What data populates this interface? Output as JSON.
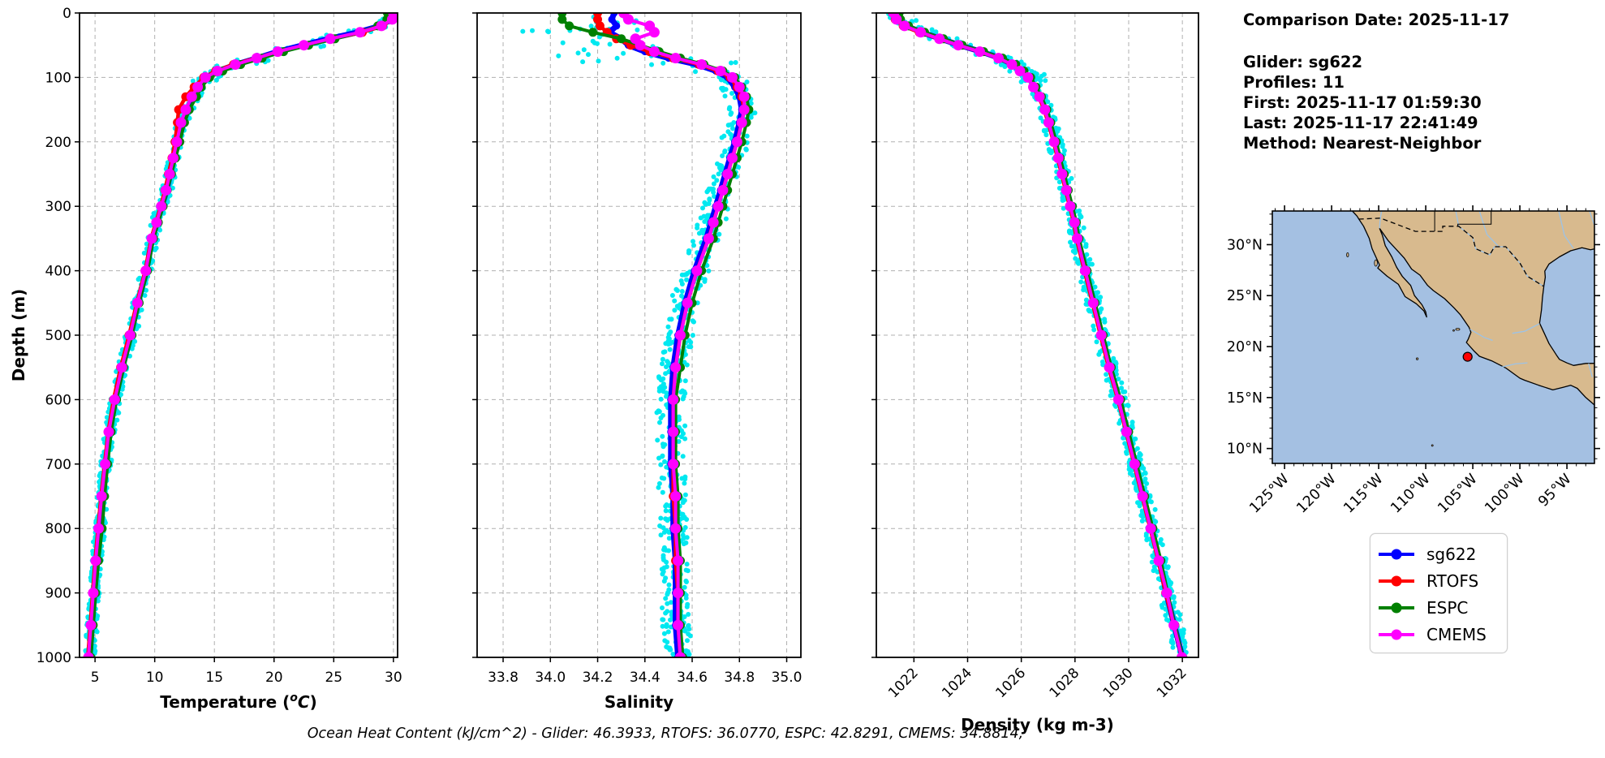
{
  "info_panel": {
    "comparison_date": "Comparison Date: 2025-11-17",
    "lines": [
      "Glider: sg622",
      "Profiles: 11",
      "First: 2025-11-17 01:59:30",
      "Last: 2025-11-17 22:41:49",
      "Method: Nearest-Neighbor"
    ]
  },
  "footer": {
    "text": "Ocean Heat Content (kJ/cm^2) - Glider: 46.3933,  RTOFS: 36.0770,  ESPC: 42.8291,  CMEMS: 34.8814,"
  },
  "legend": {
    "items": [
      {
        "label": "sg622",
        "color": "#0000ff"
      },
      {
        "label": "RTOFS",
        "color": "#ff0000"
      },
      {
        "label": "ESPC",
        "color": "#008000"
      },
      {
        "label": "CMEMS",
        "color": "#ff00ff"
      }
    ]
  },
  "map": {
    "ocean_color": "#a4c0e2",
    "land_color": "#d8ba8e",
    "river_color": "#9dc3e6",
    "lon_tick_labels": [
      "125°W",
      "120°W",
      "115°W",
      "110°W",
      "105°W",
      "100°W",
      "95°W"
    ],
    "lon_tick_values": [
      125,
      120,
      115,
      110,
      105,
      100,
      95
    ],
    "lat_tick_labels": [
      "30°N",
      "25°N",
      "20°N",
      "15°N",
      "10°N"
    ],
    "lat_tick_values": [
      30,
      25,
      20,
      15,
      10
    ],
    "glider_marker": {
      "lon_w": 105.55,
      "lat_n": 19.0,
      "color": "#ff0000"
    }
  },
  "chart_data": [
    {
      "id": "temperature",
      "type": "line",
      "xlabel_rich": [
        {
          "t": "Temperature ("
        },
        {
          "t": "o",
          "sup": true,
          "i": true
        },
        {
          "t": "C",
          "i": true
        },
        {
          "t": ")"
        }
      ],
      "ylabel": "Depth (m)",
      "xlim": [
        3.7,
        30.35
      ],
      "ylim": [
        1000,
        0
      ],
      "xticks": [
        5,
        10,
        15,
        20,
        25,
        30
      ],
      "xtick_labels": [
        "5",
        "10",
        "15",
        "20",
        "25",
        "30"
      ],
      "yticks": [
        0,
        100,
        200,
        300,
        400,
        500,
        600,
        700,
        800,
        900,
        1000
      ],
      "grid": true,
      "tick_rotation": 0,
      "depths": [
        0,
        10,
        20,
        30,
        40,
        50,
        60,
        70,
        80,
        90,
        100,
        115,
        130,
        150,
        170,
        200,
        225,
        250,
        275,
        300,
        325,
        350,
        400,
        450,
        500,
        550,
        600,
        650,
        700,
        750,
        800,
        850,
        900,
        950,
        1000
      ],
      "series": [
        {
          "name": "sg622",
          "color": "#0000ff",
          "lw": 7,
          "marker_r": 4.5,
          "values": [
            29.9,
            29.8,
            28.9,
            27.0,
            24.6,
            22.4,
            20.3,
            18.6,
            16.8,
            15.3,
            14.3,
            13.7,
            13.2,
            12.7,
            12.3,
            11.9,
            11.6,
            11.3,
            11.0,
            10.6,
            10.2,
            9.8,
            9.3,
            8.6,
            8.0,
            7.3,
            6.7,
            6.2,
            5.9,
            5.6,
            5.4,
            5.15,
            4.95,
            4.75,
            4.55
          ]
        },
        {
          "name": "RTOFS",
          "color": "#ff0000",
          "lw": 4.5,
          "marker_r": 5.5,
          "values": [
            29.95,
            29.85,
            29.1,
            27.4,
            24.9,
            22.6,
            20.4,
            18.5,
            16.6,
            15.1,
            14.1,
            13.3,
            12.6,
            12.0,
            11.9,
            11.7,
            11.45,
            11.15,
            10.85,
            10.5,
            10.1,
            9.7,
            9.2,
            8.5,
            7.85,
            7.15,
            6.55,
            6.1,
            5.8,
            5.5,
            5.25,
            5.0,
            4.8,
            4.6,
            4.4
          ]
        },
        {
          "name": "ESPC",
          "color": "#008000",
          "lw": 4,
          "marker_r": 5.5,
          "values": [
            29.5,
            29.45,
            28.7,
            27.2,
            25.1,
            22.9,
            20.8,
            19.0,
            17.2,
            15.7,
            14.6,
            13.9,
            13.5,
            12.9,
            12.5,
            12.1,
            11.75,
            11.4,
            11.05,
            10.7,
            10.3,
            9.9,
            9.4,
            8.7,
            8.1,
            7.4,
            6.8,
            6.35,
            6.05,
            5.8,
            5.6,
            5.3,
            5.05,
            4.85,
            4.65
          ]
        },
        {
          "name": "CMEMS",
          "color": "#ff00ff",
          "lw": 4,
          "marker_r": 6.5,
          "values": [
            30.0,
            29.9,
            29.0,
            27.2,
            24.7,
            22.5,
            20.3,
            18.55,
            16.75,
            15.25,
            14.25,
            13.6,
            13.1,
            12.6,
            12.2,
            11.85,
            11.55,
            11.25,
            10.95,
            10.55,
            10.15,
            9.75,
            9.25,
            8.55,
            7.95,
            7.25,
            6.65,
            6.15,
            5.85,
            5.55,
            5.3,
            5.05,
            4.85,
            4.65,
            4.45
          ]
        }
      ],
      "scatter": {
        "name": "glider-raw-scatter",
        "color": "#00e8f0",
        "count": 650,
        "band": [
          20,
          110
        ],
        "band_spread": 1.3,
        "band_bias": 0,
        "shallow_spread": 0.5,
        "deep_spread": 0.45
      }
    },
    {
      "id": "salinity",
      "type": "line",
      "xlabel": "Salinity",
      "xlim": [
        33.69,
        35.06
      ],
      "ylim": [
        1000,
        0
      ],
      "xticks": [
        33.8,
        34.0,
        34.2,
        34.4,
        34.6,
        34.8,
        35.0
      ],
      "xtick_labels": [
        "33.8",
        "34.0",
        "34.2",
        "34.4",
        "34.6",
        "34.8",
        "35.0"
      ],
      "yticks": [
        0,
        100,
        200,
        300,
        400,
        500,
        600,
        700,
        800,
        900,
        1000
      ],
      "grid": true,
      "tick_rotation": 0,
      "depths": [
        0,
        10,
        20,
        30,
        40,
        50,
        60,
        70,
        80,
        90,
        100,
        115,
        130,
        150,
        170,
        200,
        225,
        250,
        275,
        300,
        325,
        350,
        400,
        450,
        500,
        550,
        600,
        650,
        700,
        750,
        800,
        850,
        900,
        950,
        1000
      ],
      "series": [
        {
          "name": "sg622",
          "color": "#0000ff",
          "lw": 7,
          "marker_r": 4.5,
          "values": [
            34.27,
            34.26,
            34.28,
            34.25,
            34.3,
            34.33,
            34.4,
            34.5,
            34.62,
            34.7,
            34.75,
            34.78,
            34.8,
            34.81,
            34.8,
            34.78,
            34.76,
            34.74,
            34.72,
            34.7,
            34.68,
            34.66,
            34.61,
            34.57,
            34.54,
            34.52,
            34.51,
            34.51,
            34.51,
            34.52,
            34.52,
            34.53,
            34.53,
            34.53,
            34.54
          ]
        },
        {
          "name": "RTOFS",
          "color": "#ff0000",
          "lw": 4.5,
          "marker_r": 5.5,
          "values": [
            34.2,
            34.2,
            34.21,
            34.24,
            34.28,
            34.34,
            34.42,
            34.52,
            34.63,
            34.71,
            34.76,
            34.79,
            34.81,
            34.82,
            34.81,
            34.79,
            34.77,
            34.75,
            34.73,
            34.71,
            34.69,
            34.67,
            34.62,
            34.58,
            34.55,
            34.53,
            34.52,
            34.52,
            34.52,
            34.52,
            34.53,
            34.53,
            34.54,
            34.54,
            34.55
          ]
        },
        {
          "name": "ESPC",
          "color": "#008000",
          "lw": 4,
          "marker_r": 5.5,
          "values": [
            34.05,
            34.05,
            34.08,
            34.18,
            34.3,
            34.38,
            34.46,
            34.55,
            34.65,
            34.73,
            34.78,
            34.81,
            34.83,
            34.84,
            34.83,
            34.81,
            34.79,
            34.77,
            34.75,
            34.73,
            34.71,
            34.69,
            34.64,
            34.6,
            34.57,
            34.55,
            34.53,
            34.53,
            34.53,
            34.54,
            34.54,
            34.55,
            34.55,
            34.55,
            34.56
          ]
        },
        {
          "name": "CMEMS",
          "color": "#ff00ff",
          "lw": 4,
          "marker_r": 6.5,
          "values": [
            34.31,
            34.33,
            34.42,
            34.44,
            34.36,
            34.38,
            34.44,
            34.53,
            34.64,
            34.72,
            34.77,
            34.8,
            34.82,
            34.82,
            34.81,
            34.79,
            34.77,
            34.75,
            34.73,
            34.71,
            34.69,
            34.67,
            34.62,
            34.58,
            34.55,
            34.53,
            34.52,
            34.52,
            34.52,
            34.53,
            34.53,
            34.54,
            34.54,
            34.54,
            34.55
          ]
        }
      ],
      "scatter": {
        "name": "glider-raw-scatter",
        "color": "#00e8f0",
        "count": 650,
        "band": [
          20,
          85
        ],
        "band_spread": 0.3,
        "band_bias": -0.15,
        "shallow_spread": 0.1,
        "deep_spread": 0.06
      }
    },
    {
      "id": "density",
      "type": "line",
      "xlabel": "Density (kg m-3)",
      "xlim": [
        1020.6,
        1032.6
      ],
      "ylim": [
        1000,
        0
      ],
      "xticks": [
        1022,
        1024,
        1026,
        1028,
        1030,
        1032
      ],
      "xtick_labels": [
        "1022",
        "1024",
        "1026",
        "1028",
        "1030",
        "1032"
      ],
      "yticks": [
        0,
        100,
        200,
        300,
        400,
        500,
        600,
        700,
        800,
        900,
        1000
      ],
      "grid": true,
      "tick_rotation": 45,
      "depths": [
        0,
        10,
        20,
        30,
        40,
        50,
        60,
        70,
        80,
        90,
        100,
        115,
        130,
        150,
        170,
        200,
        225,
        250,
        275,
        300,
        325,
        350,
        400,
        450,
        500,
        550,
        600,
        650,
        700,
        750,
        800,
        850,
        900,
        950,
        1000
      ],
      "series": [
        {
          "name": "sg622",
          "color": "#0000ff",
          "lw": 7,
          "marker_r": 4.5,
          "values": [
            1021.3,
            1021.4,
            1021.7,
            1022.3,
            1023.0,
            1023.7,
            1024.5,
            1025.2,
            1025.7,
            1026.0,
            1026.3,
            1026.5,
            1026.7,
            1026.9,
            1027.05,
            1027.25,
            1027.4,
            1027.55,
            1027.7,
            1027.85,
            1028.0,
            1028.1,
            1028.4,
            1028.7,
            1029.0,
            1029.3,
            1029.65,
            1029.95,
            1030.25,
            1030.55,
            1030.85,
            1031.15,
            1031.4,
            1031.7,
            1032.0
          ]
        },
        {
          "name": "RTOFS",
          "color": "#ff0000",
          "lw": 4.5,
          "marker_r": 5.5,
          "values": [
            1021.2,
            1021.3,
            1021.6,
            1022.2,
            1022.95,
            1023.65,
            1024.45,
            1025.15,
            1025.65,
            1025.95,
            1026.25,
            1026.45,
            1026.65,
            1026.85,
            1027.0,
            1027.2,
            1027.35,
            1027.5,
            1027.65,
            1027.8,
            1027.95,
            1028.05,
            1028.35,
            1028.65,
            1028.95,
            1029.25,
            1029.6,
            1029.9,
            1030.2,
            1030.5,
            1030.8,
            1031.1,
            1031.38,
            1031.68,
            1031.98
          ]
        },
        {
          "name": "ESPC",
          "color": "#008000",
          "lw": 4,
          "marker_r": 5.5,
          "values": [
            1021.45,
            1021.5,
            1021.8,
            1022.4,
            1023.1,
            1023.8,
            1024.6,
            1025.3,
            1025.8,
            1026.1,
            1026.35,
            1026.55,
            1026.75,
            1026.95,
            1027.1,
            1027.3,
            1027.45,
            1027.6,
            1027.75,
            1027.9,
            1028.05,
            1028.15,
            1028.45,
            1028.75,
            1029.05,
            1029.35,
            1029.7,
            1030.0,
            1030.3,
            1030.6,
            1030.9,
            1031.2,
            1031.45,
            1031.72,
            1032.02
          ]
        },
        {
          "name": "CMEMS",
          "color": "#ff00ff",
          "lw": 4,
          "marker_r": 6.5,
          "values": [
            1021.25,
            1021.35,
            1021.65,
            1022.25,
            1022.95,
            1023.65,
            1024.45,
            1025.15,
            1025.65,
            1025.95,
            1026.25,
            1026.45,
            1026.68,
            1026.88,
            1027.02,
            1027.22,
            1027.38,
            1027.52,
            1027.68,
            1027.82,
            1027.98,
            1028.08,
            1028.38,
            1028.68,
            1028.98,
            1029.28,
            1029.62,
            1029.92,
            1030.22,
            1030.52,
            1030.82,
            1031.12,
            1031.42,
            1031.68,
            1031.98
          ]
        }
      ],
      "scatter": {
        "name": "glider-raw-scatter",
        "color": "#00e8f0",
        "count": 650,
        "band": [
          15,
          110
        ],
        "band_spread": 0.55,
        "band_bias": 0.05,
        "shallow_spread": 0.35,
        "deep_spread": 0.28
      }
    }
  ]
}
